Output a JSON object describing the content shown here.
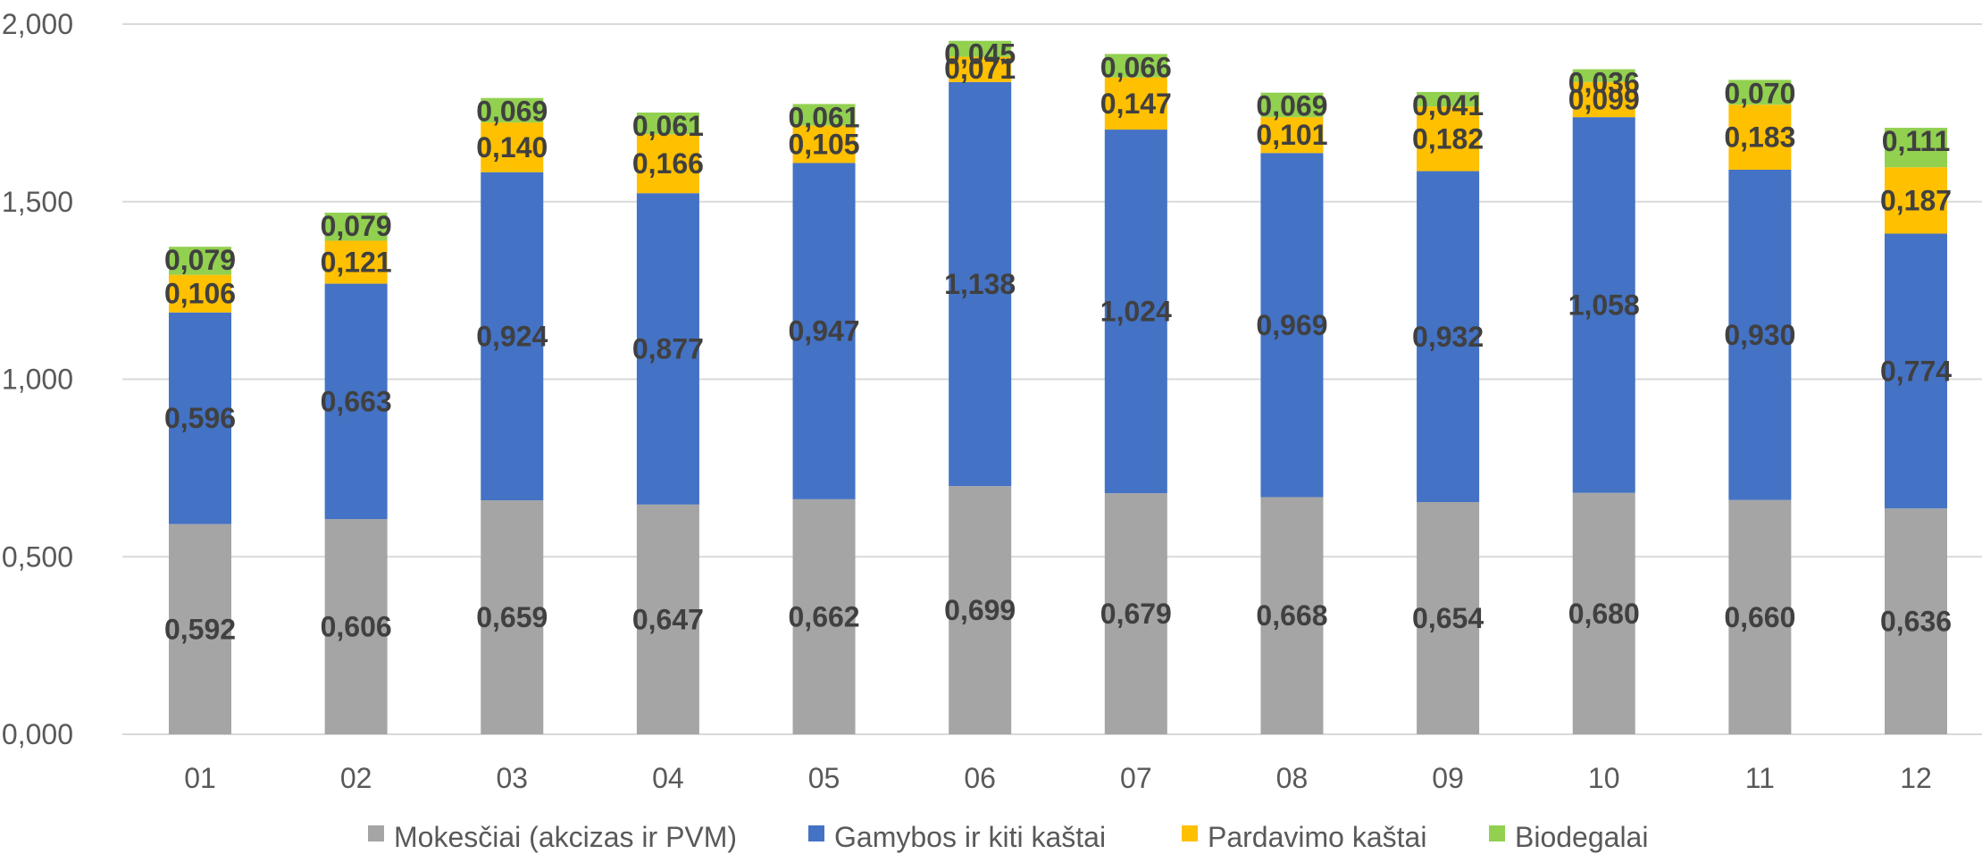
{
  "chart_data": {
    "type": "bar",
    "stacked": true,
    "title": "",
    "xlabel": "",
    "ylabel": "",
    "categories": [
      "01",
      "02",
      "03",
      "04",
      "05",
      "06",
      "07",
      "08",
      "09",
      "10",
      "11",
      "12"
    ],
    "ylim": [
      0,
      2000
    ],
    "yticks": [
      0,
      500,
      1000,
      1500,
      2000
    ],
    "ytick_labels": [
      "0,000",
      "0,500",
      "1,000",
      "1,500",
      "2,000"
    ],
    "grid": true,
    "legend_position": "bottom",
    "series": [
      {
        "name": "Mokesčiai (akcizas ir PVM)",
        "color": "#A5A5A5",
        "values": [
          0.592,
          0.606,
          0.659,
          0.647,
          0.662,
          0.699,
          0.679,
          0.668,
          0.654,
          0.68,
          0.66,
          0.636
        ],
        "labels": [
          "0,592",
          "0,606",
          "0,659",
          "0,647",
          "0,662",
          "0,699",
          "0,679",
          "0,668",
          "0,654",
          "0,680",
          "0,660",
          "0,636"
        ]
      },
      {
        "name": "Gamybos ir kiti kaštai",
        "color": "#4472C4",
        "values": [
          0.596,
          0.663,
          0.924,
          0.877,
          0.947,
          1.138,
          1.024,
          0.969,
          0.932,
          1.058,
          0.93,
          0.774
        ],
        "labels": [
          "0,596",
          "0,663",
          "0,924",
          "0,877",
          "0,947",
          "1,138",
          "1,024",
          "0,969",
          "0,932",
          "1,058",
          "0,930",
          "0,774"
        ]
      },
      {
        "name": "Pardavimo kaštai",
        "color": "#FFC000",
        "values": [
          0.106,
          0.121,
          0.14,
          0.166,
          0.105,
          0.071,
          0.147,
          0.101,
          0.182,
          0.099,
          0.183,
          0.187
        ],
        "labels": [
          "0,106",
          "0,121",
          "0,140",
          "0,166",
          "0,105",
          "0,071",
          "0,147",
          "0,101",
          "0,182",
          "0,099",
          "0,183",
          "0,187"
        ]
      },
      {
        "name": "Biodegalai",
        "color": "#92D050",
        "values": [
          0.079,
          0.079,
          0.069,
          0.061,
          0.061,
          0.045,
          0.066,
          0.069,
          0.041,
          0.036,
          0.07,
          0.111
        ],
        "labels": [
          "0,079",
          "0,079",
          "0,069",
          "0,061",
          "0,061",
          "0,045",
          "0,066",
          "0,069",
          "0,041",
          "0,036",
          "0,070",
          "0,111"
        ]
      }
    ]
  }
}
